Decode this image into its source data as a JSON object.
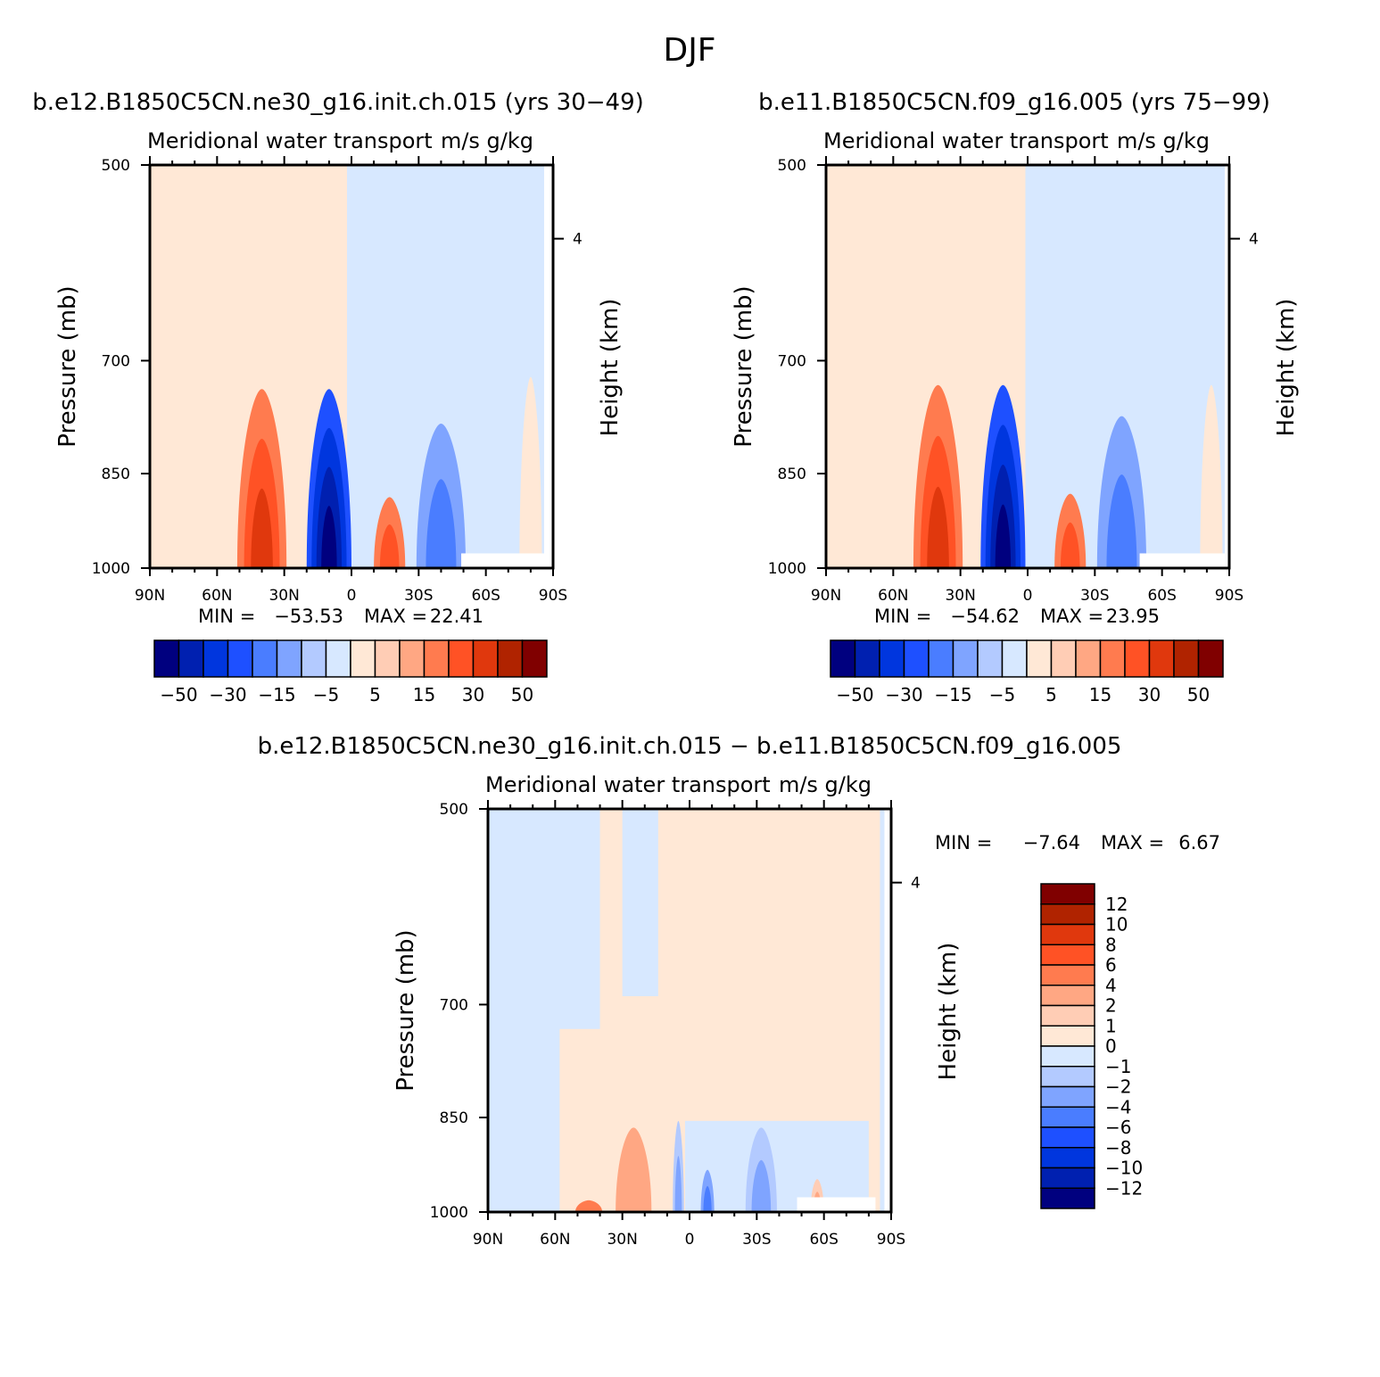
{
  "figure": {
    "title": "DJF",
    "difference_title": "b.e12.B1850C5CN.ne30_g16.init.ch.015 − b.e11.B1850C5CN.f09_g16.005"
  },
  "colors": {
    "full": [
      "#00007f",
      "#0020b0",
      "#0036de",
      "#1e50ff",
      "#4a7dff",
      "#7fa4ff",
      "#b3caff",
      "#d7e8ff",
      "#ffe8d6",
      "#ffcdb5",
      "#ffa783",
      "#ff7b4f",
      "#ff5225",
      "#e0380d",
      "#b02300",
      "#800000"
    ],
    "diff": [
      "#00007f",
      "#0020b0",
      "#0036de",
      "#1e50ff",
      "#4a7dff",
      "#7fa4ff",
      "#b3caff",
      "#d7e8ff",
      "#ffe8d6",
      "#ffcdb5",
      "#ffa783",
      "#ff7b4f",
      "#ff5225",
      "#e0380d",
      "#b02300",
      "#800000"
    ]
  },
  "chart_data": [
    {
      "type": "heatmap",
      "panel": "left",
      "title": "b.e12.B1850C5CN.ne30_g16.init.ch.015 (yrs 30−49)",
      "left_label": "Meridional water transport",
      "right_label": "m/s g/kg",
      "ylabel": "Pressure (mb)",
      "ylabel_right": "Height (km)",
      "x_ticks": [
        "90N",
        "60N",
        "30N",
        "0",
        "30S",
        "60S",
        "90S"
      ],
      "x_values": [
        90,
        60,
        30,
        0,
        -30,
        -60,
        -90
      ],
      "xlim": [
        90,
        -90
      ],
      "y_ticks": [
        "500",
        "700",
        "850",
        "1000"
      ],
      "y_values": [
        500,
        700,
        850,
        1000
      ],
      "ylim": [
        1000,
        500
      ],
      "y_right_ticks": [
        "4"
      ],
      "y_right_values": [
        4
      ],
      "min_label": "MIN =",
      "min_value": "−53.53",
      "max_label": "MAX =",
      "max_value": "22.41",
      "colorbar_labels": [
        "−50",
        "−30",
        "−15",
        "−5",
        "5",
        "15",
        "30",
        "50"
      ],
      "colorbar_orientation": "horizontal",
      "features": [
        {
          "kind": "region",
          "from_lat": 90,
          "to_lat": 2,
          "level": 8
        },
        {
          "kind": "region",
          "from_lat": 2,
          "to_lat": -90,
          "level": 7
        },
        {
          "kind": "cell",
          "lat": 40,
          "width": 22,
          "top_p": 735,
          "peak": 13,
          "bottom_level": 11
        },
        {
          "kind": "cell",
          "lat": 10,
          "width": 20,
          "top_p": 735,
          "peak": 0,
          "bottom_level": 3
        },
        {
          "kind": "cell",
          "lat": -17,
          "width": 14,
          "top_p": 885,
          "peak": 12,
          "bottom_level": 11
        },
        {
          "kind": "cell",
          "lat": -40,
          "width": 22,
          "top_p": 780,
          "peak": 4,
          "bottom_level": 5
        },
        {
          "kind": "cell",
          "lat": -80,
          "width": 10,
          "top_p": 720,
          "peak": 8,
          "bottom_level": 8
        },
        {
          "kind": "missing",
          "from_lat": -49,
          "to_lat": -90,
          "from_p": 975,
          "to_p": 1000
        },
        {
          "kind": "missing",
          "from_lat": -86,
          "to_lat": -90,
          "from_p": 500,
          "to_p": 1000
        }
      ]
    },
    {
      "type": "heatmap",
      "panel": "right",
      "title": "b.e11.B1850C5CN.f09_g16.005 (yrs 75−99)",
      "left_label": "Meridional water transport",
      "right_label": "m/s g/kg",
      "ylabel": "Pressure (mb)",
      "ylabel_right": "Height (km)",
      "x_ticks": [
        "90N",
        "60N",
        "30N",
        "0",
        "30S",
        "60S",
        "90S"
      ],
      "x_values": [
        90,
        60,
        30,
        0,
        -30,
        -60,
        -90
      ],
      "xlim": [
        90,
        -90
      ],
      "y_ticks": [
        "500",
        "700",
        "850",
        "1000"
      ],
      "y_values": [
        500,
        700,
        850,
        1000
      ],
      "ylim": [
        1000,
        500
      ],
      "y_right_ticks": [
        "4"
      ],
      "y_right_values": [
        4
      ],
      "min_label": "MIN =",
      "min_value": "−54.62",
      "max_label": "MAX =",
      "max_value": "23.95",
      "colorbar_labels": [
        "−50",
        "−30",
        "−15",
        "−5",
        "5",
        "15",
        "30",
        "50"
      ],
      "colorbar_orientation": "horizontal",
      "features": [
        {
          "kind": "region",
          "from_lat": 90,
          "to_lat": 1,
          "level": 8
        },
        {
          "kind": "region",
          "from_lat": 1,
          "to_lat": -90,
          "level": 7
        },
        {
          "kind": "cell",
          "lat": 40,
          "width": 22,
          "top_p": 730,
          "peak": 13,
          "bottom_level": 11
        },
        {
          "kind": "cell",
          "lat": 11,
          "width": 20,
          "top_p": 730,
          "peak": 0,
          "bottom_level": 3
        },
        {
          "kind": "cell",
          "lat": -19,
          "width": 14,
          "top_p": 880,
          "peak": 12,
          "bottom_level": 11
        },
        {
          "kind": "cell",
          "lat": -42,
          "width": 22,
          "top_p": 770,
          "peak": 4,
          "bottom_level": 5
        },
        {
          "kind": "cell",
          "lat": -82,
          "width": 10,
          "top_p": 730,
          "peak": 8,
          "bottom_level": 8
        },
        {
          "kind": "missing",
          "from_lat": -50,
          "to_lat": -88,
          "from_p": 975,
          "to_p": 1000
        },
        {
          "kind": "missing",
          "from_lat": -88,
          "to_lat": -90,
          "from_p": 500,
          "to_p": 1000
        }
      ]
    },
    {
      "type": "heatmap",
      "panel": "difference",
      "title": "b.e12.B1850C5CN.ne30_g16.init.ch.015 − b.e11.B1850C5CN.f09_g16.005",
      "left_label": "Meridional water transport",
      "right_label": "m/s g/kg",
      "ylabel": "Pressure (mb)",
      "ylabel_right": "Height (km)",
      "x_ticks": [
        "90N",
        "60N",
        "30N",
        "0",
        "30S",
        "60S",
        "90S"
      ],
      "x_values": [
        90,
        60,
        30,
        0,
        -30,
        -60,
        -90
      ],
      "xlim": [
        90,
        -90
      ],
      "y_ticks": [
        "500",
        "700",
        "850",
        "1000"
      ],
      "y_values": [
        500,
        700,
        850,
        1000
      ],
      "ylim": [
        1000,
        500
      ],
      "y_right_ticks": [
        "4"
      ],
      "y_right_values": [
        4
      ],
      "min_label": "MIN =",
      "min_value": "−7.64",
      "max_label": "MAX =",
      "max_value": "6.67",
      "colorbar_labels": [
        "12",
        "10",
        "8",
        "6",
        "4",
        "2",
        "1",
        "0",
        "−1",
        "−2",
        "−4",
        "−6",
        "−8",
        "−10",
        "−12"
      ],
      "colorbar_orientation": "vertical",
      "features": [
        {
          "kind": "region",
          "from_lat": 90,
          "to_lat": -90,
          "level": 8
        },
        {
          "kind": "region",
          "from_lat": 90,
          "to_lat": 58,
          "level": 7
        },
        {
          "kind": "region",
          "from_lat": 62,
          "to_lat": 40,
          "level": 7,
          "from_p": 500,
          "to_p": 730
        },
        {
          "kind": "region",
          "from_lat": 30,
          "to_lat": 14,
          "level": 7,
          "from_p": 500,
          "to_p": 690
        },
        {
          "kind": "region",
          "from_lat": 2,
          "to_lat": -80,
          "level": 7,
          "from_p": 855,
          "to_p": 1000
        },
        {
          "kind": "region",
          "from_lat": -85,
          "to_lat": -90,
          "level": 7
        },
        {
          "kind": "cell",
          "lat": 25,
          "width": 16,
          "top_p": 865,
          "peak": 10,
          "bottom_level": 10
        },
        {
          "kind": "cell",
          "lat": 45,
          "width": 12,
          "top_p": 980,
          "peak": 11,
          "bottom_level": 11
        },
        {
          "kind": "cell",
          "lat": 5,
          "width": 5,
          "top_p": 855,
          "peak": 5,
          "bottom_level": 6
        },
        {
          "kind": "cell",
          "lat": -8,
          "width": 6,
          "top_p": 930,
          "peak": 4,
          "bottom_level": 5
        },
        {
          "kind": "cell",
          "lat": -32,
          "width": 14,
          "top_p": 865,
          "peak": 5,
          "bottom_level": 6
        },
        {
          "kind": "cell",
          "lat": -57,
          "width": 6,
          "top_p": 945,
          "peak": 10,
          "bottom_level": 9
        },
        {
          "kind": "missing",
          "from_lat": -48,
          "to_lat": -83,
          "from_p": 975,
          "to_p": 1000
        },
        {
          "kind": "missing",
          "from_lat": -87,
          "to_lat": -90,
          "from_p": 500,
          "to_p": 1000
        }
      ]
    }
  ]
}
